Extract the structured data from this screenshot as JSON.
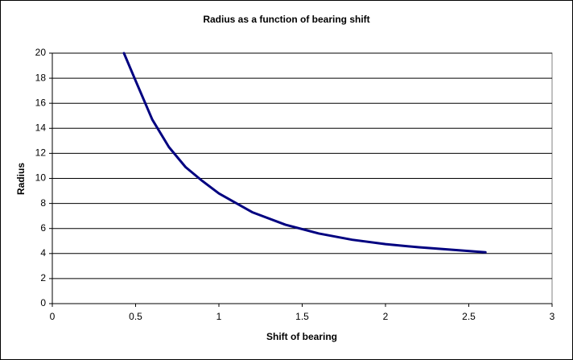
{
  "chart_data": {
    "type": "line",
    "title": "Radius as a function of bearing shift",
    "x_label": "Shift of bearing",
    "y_label": "Radius",
    "x": [
      0.43,
      0.5,
      0.6,
      0.7,
      0.8,
      0.9,
      1.0,
      1.2,
      1.4,
      1.6,
      1.8,
      2.0,
      2.2,
      2.4,
      2.6
    ],
    "series": [
      {
        "name": "Radius",
        "color": "#000080",
        "values": [
          20,
          17.8,
          14.7,
          12.5,
          10.9,
          9.8,
          8.8,
          7.3,
          6.3,
          5.6,
          5.1,
          4.75,
          4.5,
          4.3,
          4.1
        ]
      }
    ],
    "xlim": [
      0,
      3
    ],
    "xticks": [
      0,
      0.5,
      1,
      1.5,
      2,
      2.5,
      3
    ],
    "ylim": [
      0,
      20
    ],
    "yticks": [
      0,
      2,
      4,
      6,
      8,
      10,
      12,
      14,
      16,
      18,
      20
    ],
    "grid": true
  }
}
